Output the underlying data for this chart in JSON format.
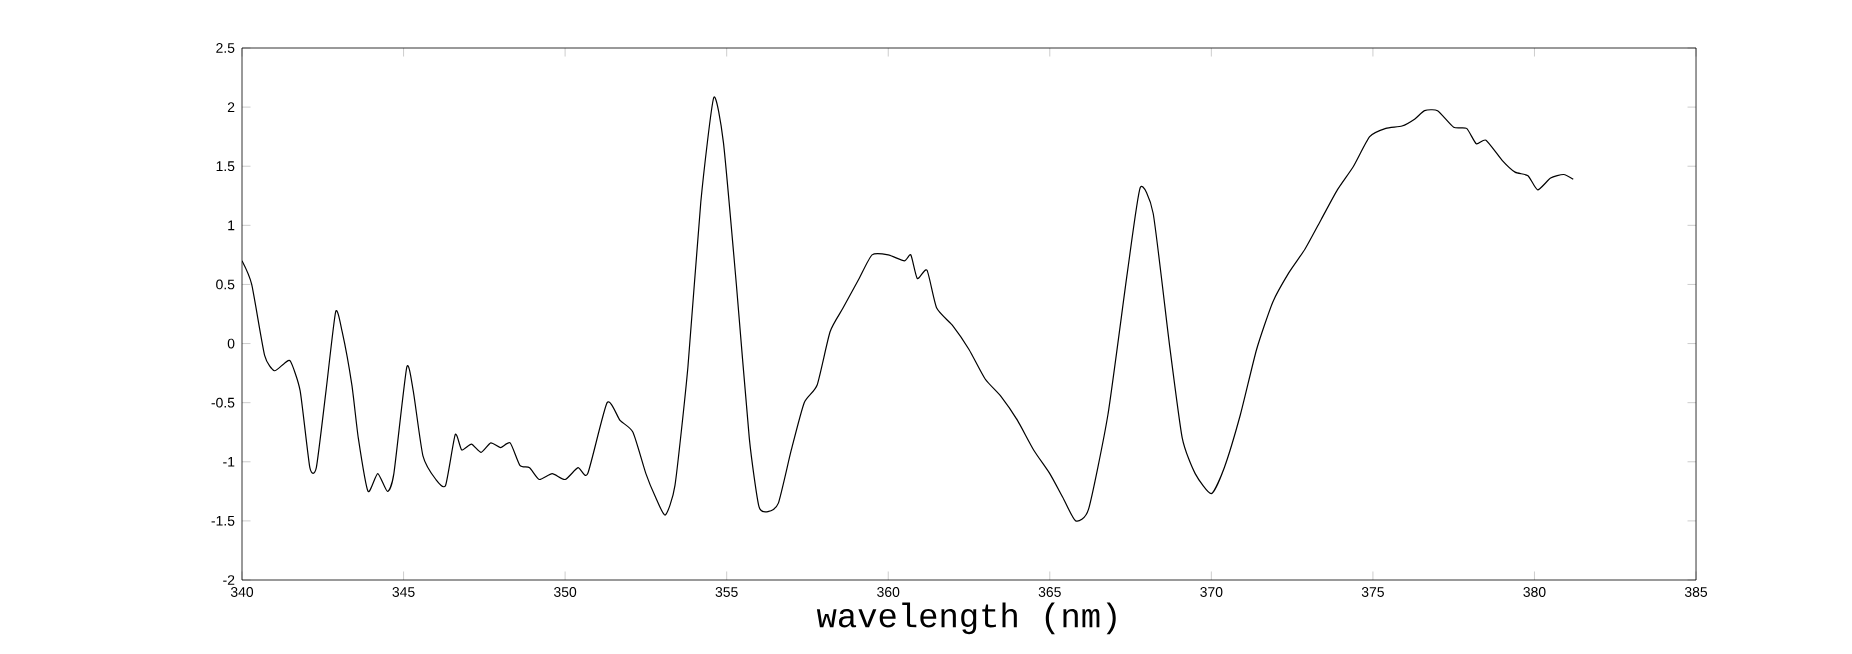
{
  "chart_data": {
    "type": "line",
    "xlabel": "wavelength (nm)",
    "xlim": [
      340,
      385
    ],
    "xticks": [
      340,
      345,
      350,
      355,
      360,
      365,
      370,
      375,
      380,
      385
    ],
    "ylim": [
      -2,
      2.5
    ],
    "yticks": [
      -2,
      -1.5,
      -1,
      -0.5,
      0,
      0.5,
      1,
      1.5,
      2,
      2.5
    ],
    "grid": false,
    "series": [
      {
        "color": "#000000",
        "x": [
          340,
          340.3,
          340.7,
          341.0,
          341.3,
          341.5,
          341.8,
          342.1,
          342.3,
          342.6,
          342.9,
          343.1,
          343.4,
          343.6,
          343.9,
          344.2,
          344.5,
          344.7,
          345.1,
          345.3,
          345.6,
          346.0,
          346.3,
          346.6,
          346.8,
          347.1,
          347.4,
          347.7,
          348.0,
          348.3,
          348.6,
          348.9,
          349.2,
          349.6,
          350.0,
          350.4,
          350.7,
          351.3,
          351.7,
          352.1,
          352.5,
          352.8,
          353.1,
          353.4,
          353.8,
          354.2,
          354.6,
          354.9,
          355.3,
          355.7,
          356.0,
          356.3,
          356.6,
          357.0,
          357.4,
          357.8,
          358.2,
          358.6,
          359.1,
          359.5,
          360.0,
          360.5,
          360.7,
          360.9,
          361.2,
          361.5,
          362.0,
          362.5,
          363.0,
          363.5,
          364.0,
          364.5,
          365.0,
          365.4,
          365.8,
          366.2,
          366.8,
          367.4,
          367.8,
          368.2,
          368.7,
          369.1,
          369.5,
          370.0,
          370.4,
          370.9,
          371.4,
          371.9,
          372.4,
          372.9,
          373.4,
          373.9,
          374.4,
          374.9,
          375.4,
          375.9,
          376.3,
          376.6,
          377.0,
          377.5,
          377.9,
          378.2,
          378.5,
          379.0,
          379.4,
          379.8,
          380.1,
          380.5,
          380.9,
          381.2
        ],
        "values": [
          0.7,
          0.5,
          -0.1,
          -0.23,
          -0.17,
          -0.15,
          -0.4,
          -1.05,
          -1.05,
          -0.4,
          0.27,
          0.1,
          -0.35,
          -0.8,
          -1.25,
          -1.1,
          -1.25,
          -1.1,
          -0.2,
          -0.4,
          -0.95,
          -1.15,
          -1.2,
          -0.77,
          -0.9,
          -0.85,
          -0.92,
          -0.84,
          -0.88,
          -0.84,
          -1.03,
          -1.05,
          -1.15,
          -1.1,
          -1.15,
          -1.05,
          -1.1,
          -0.5,
          -0.65,
          -0.75,
          -1.1,
          -1.3,
          -1.45,
          -1.2,
          -0.2,
          1.2,
          2.08,
          1.7,
          0.5,
          -0.8,
          -1.38,
          -1.42,
          -1.35,
          -0.9,
          -0.5,
          -0.35,
          0.1,
          0.3,
          0.55,
          0.75,
          0.75,
          0.7,
          0.75,
          0.55,
          0.62,
          0.3,
          0.15,
          -0.05,
          -0.3,
          -0.45,
          -0.65,
          -0.9,
          -1.1,
          -1.3,
          -1.5,
          -1.4,
          -0.6,
          0.6,
          1.32,
          1.1,
          0.0,
          -0.8,
          -1.1,
          -1.27,
          -1.05,
          -0.6,
          -0.05,
          0.35,
          0.6,
          0.8,
          1.05,
          1.3,
          1.5,
          1.75,
          1.82,
          1.84,
          1.9,
          1.97,
          1.97,
          1.83,
          1.82,
          1.69,
          1.72,
          1.55,
          1.45,
          1.42,
          1.3,
          1.4,
          1.43,
          1.39
        ]
      }
    ]
  }
}
